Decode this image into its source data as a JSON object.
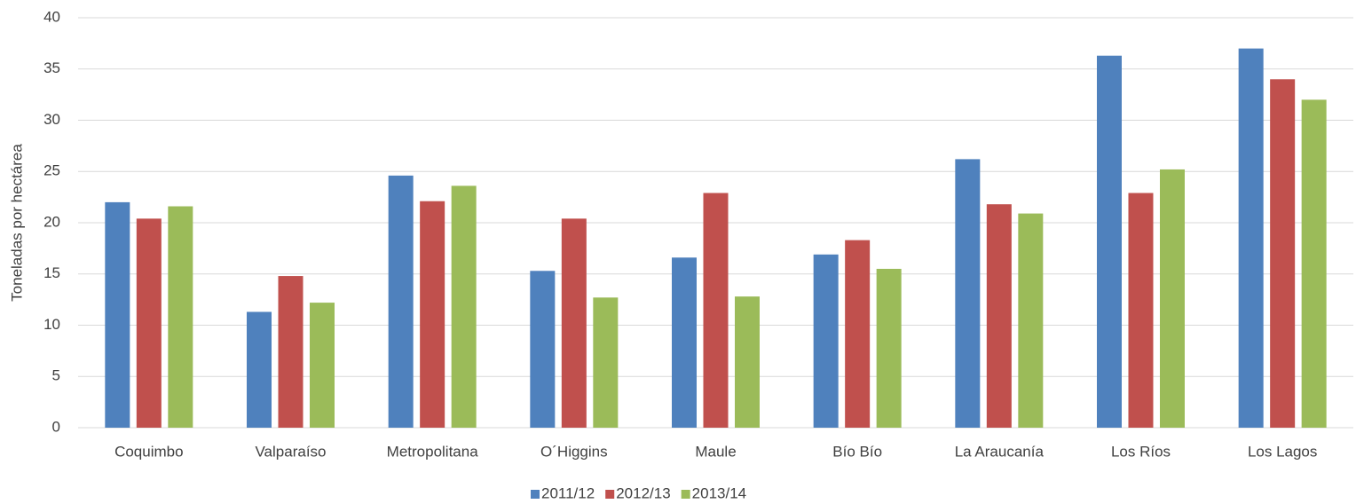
{
  "chart_data": {
    "type": "bar",
    "y_label": "Toneladas por hectárea",
    "categories": [
      "Coquimbo",
      "Valparaíso",
      "Metropolitana",
      "O´Higgins",
      "Maule",
      "Bío Bío",
      "La Araucanía",
      "Los Ríos",
      "Los Lagos"
    ],
    "series": [
      {
        "name": "2011/12",
        "color": "#4f81bd",
        "values": [
          22.0,
          11.3,
          24.6,
          15.3,
          16.6,
          16.9,
          26.2,
          36.3,
          37.0
        ]
      },
      {
        "name": "2012/13",
        "color": "#c0504d",
        "values": [
          20.4,
          14.8,
          22.1,
          20.4,
          22.9,
          18.3,
          21.8,
          22.9,
          34.0
        ]
      },
      {
        "name": "2013/14",
        "color": "#9bbb59",
        "values": [
          21.6,
          12.2,
          23.6,
          12.7,
          12.8,
          15.5,
          20.9,
          25.2,
          32.0
        ]
      }
    ],
    "ylim": [
      0,
      40
    ],
    "yticks": [
      0,
      5,
      10,
      15,
      20,
      25,
      30,
      35,
      40
    ],
    "grid": true,
    "legend": "bottom"
  }
}
